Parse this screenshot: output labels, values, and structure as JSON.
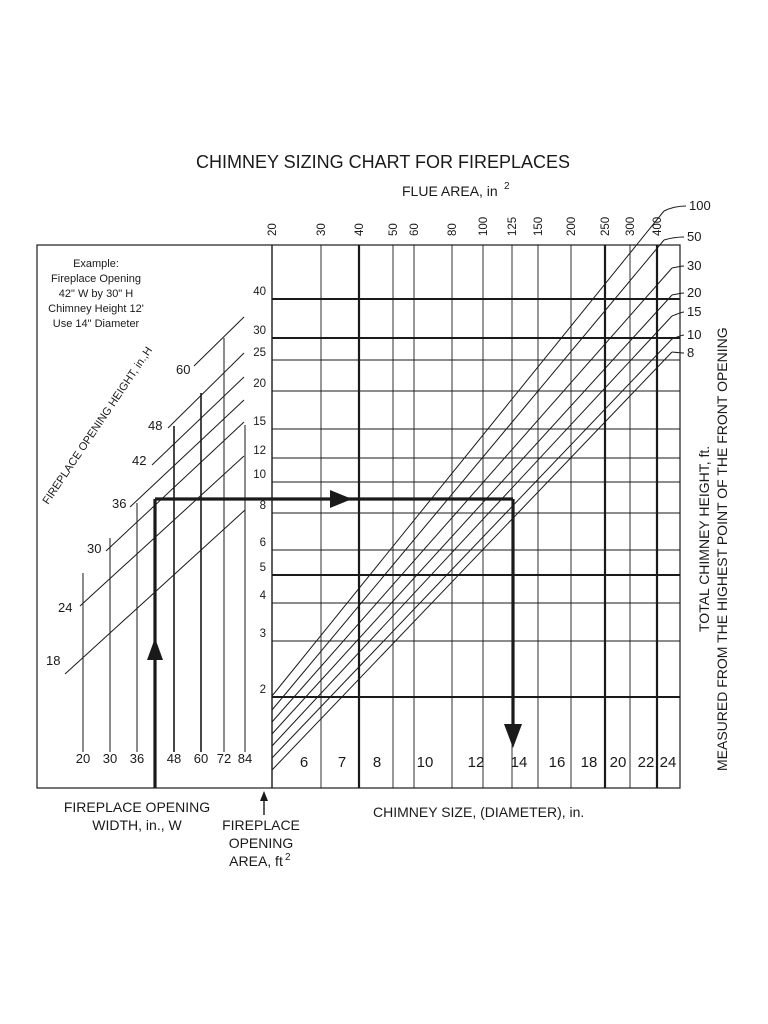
{
  "chart_data": {
    "type": "nomograph",
    "title": "CHIMNEY SIZING CHART FOR FIREPLACES",
    "flue_area": {
      "label": "FLUE AREA, in",
      "label_sup": "2",
      "ticks": [
        "20",
        "30",
        "40",
        "50",
        "60",
        "80",
        "100",
        "125",
        "150",
        "200",
        "250",
        "300",
        "400"
      ]
    },
    "chimney_size": {
      "label": "CHIMNEY SIZE, (DIAMETER), in.",
      "ticks": [
        "6",
        "7",
        "8",
        "10",
        "12",
        "14",
        "16",
        "18",
        "20",
        "22",
        "24"
      ]
    },
    "opening_area": {
      "label": "FIREPLACE OPENING AREA, ft",
      "label_sup": "2",
      "ticks": [
        "2",
        "3",
        "4",
        "5",
        "6",
        "8",
        "10",
        "12",
        "15",
        "20",
        "25",
        "30",
        "40"
      ]
    },
    "chimney_height": {
      "label_line1": "TOTAL CHIMNEY HEIGHT, ft.",
      "label_line2": "MEASURED FROM THE HIGHEST POINT OF THE FRONT OPENING",
      "values": [
        "100",
        "50",
        "30",
        "20",
        "15",
        "10",
        "8"
      ]
    },
    "opening_width": {
      "label_line1": "FIREPLACE OPENING",
      "label_line2": "WIDTH, in., W",
      "ticks": [
        "20",
        "30",
        "36",
        "48",
        "60",
        "72",
        "84"
      ]
    },
    "opening_height": {
      "label": "FIREPLACE OPENING HEIGHT, in.,H",
      "values": [
        "18",
        "24",
        "30",
        "36",
        "42",
        "48",
        "60"
      ]
    },
    "area_label_lines": [
      "FIREPLACE",
      "OPENING",
      "AREA, ft"
    ],
    "example": {
      "lines": [
        "Example:",
        "Fireplace Opening",
        "42\" W by 30\" H",
        "Chimney Height 12'",
        "Use 14\" Diameter"
      ],
      "width_in": 42,
      "height_in": 30,
      "chimney_height_ft": 12,
      "opening_area_ft2": 8.75,
      "result_diameter_in": 14
    }
  }
}
